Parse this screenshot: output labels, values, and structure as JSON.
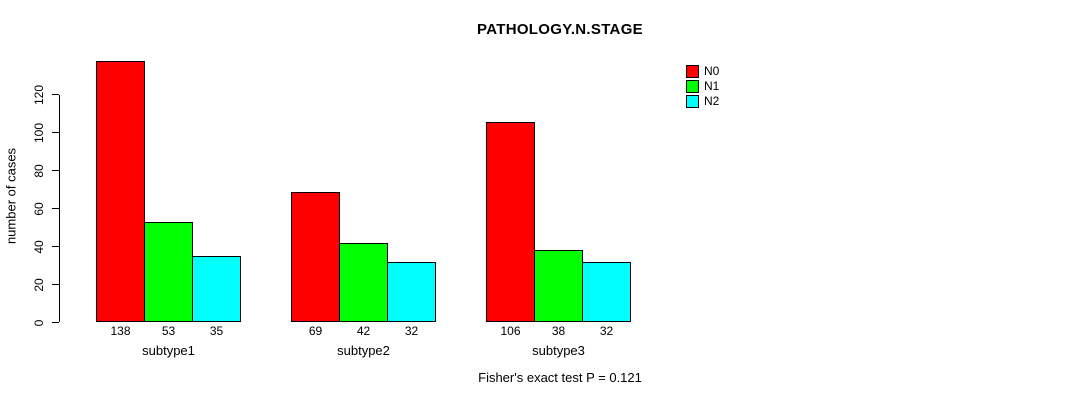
{
  "chart_data": {
    "type": "bar",
    "title": "PATHOLOGY.N.STAGE",
    "categories": [
      "subtype1",
      "subtype2",
      "subtype3"
    ],
    "series": [
      {
        "name": "N0",
        "color": "#FF0000",
        "values": [
          138,
          69,
          106
        ]
      },
      {
        "name": "N1",
        "color": "#00FF00",
        "values": [
          53,
          42,
          38
        ]
      },
      {
        "name": "N2",
        "color": "#00FFFF",
        "values": [
          35,
          32,
          32
        ]
      }
    ],
    "xlabel": "",
    "ylabel": "number of cases",
    "ylim": [
      0,
      138
    ],
    "yticks": [
      0,
      20,
      40,
      60,
      80,
      100,
      120
    ],
    "grid": false,
    "legend_position": "topright",
    "bar_value_labels": true,
    "annotation": "Fisher's exact test P = 0.121",
    "annotation_position": "bottom-center",
    "colors": {
      "bar_border": "#000000",
      "text": "#000000",
      "background": "#FFFFFF"
    }
  }
}
